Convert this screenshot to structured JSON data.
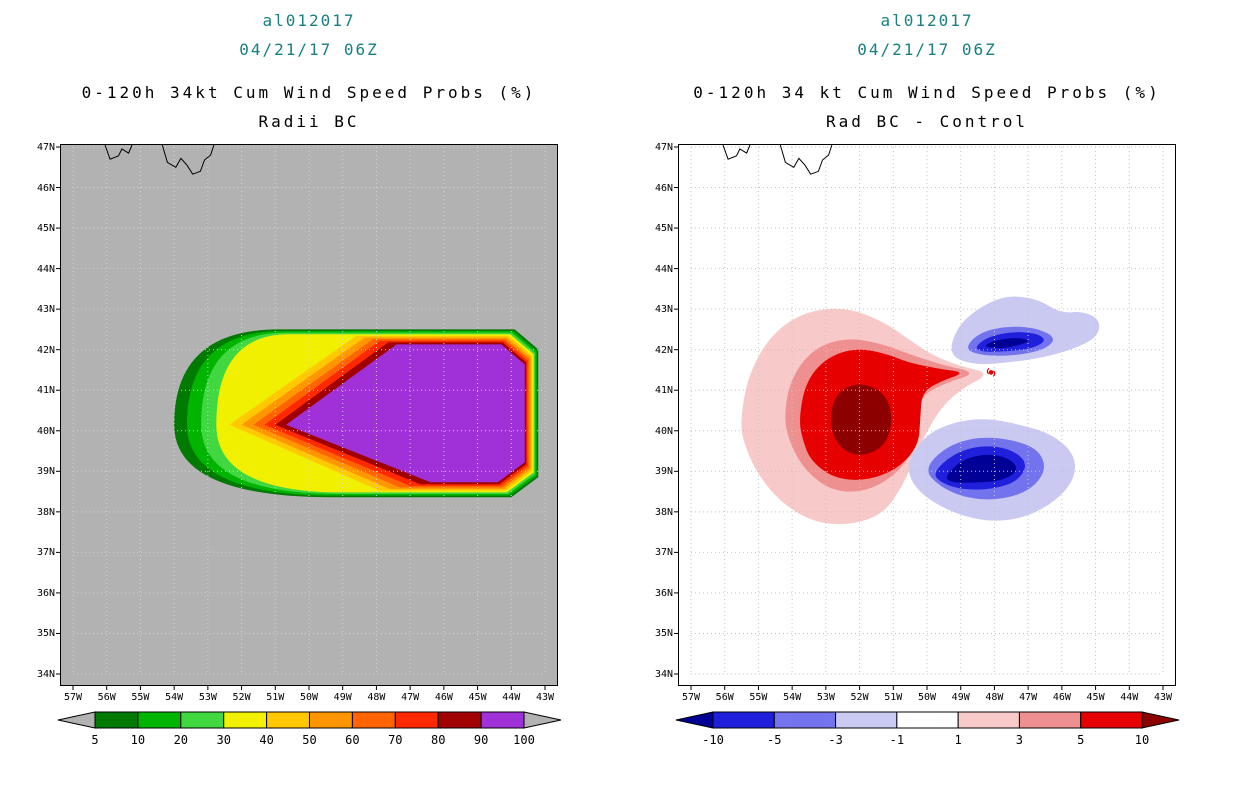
{
  "coastlines": [
    [
      [
        56.05,
        47.05
      ],
      [
        55.9,
        46.7
      ],
      [
        55.65,
        46.78
      ],
      [
        55.55,
        46.95
      ],
      [
        55.35,
        46.85
      ],
      [
        55.25,
        47.05
      ]
    ],
    [
      [
        54.35,
        47.05
      ],
      [
        54.2,
        46.62
      ],
      [
        53.95,
        46.5
      ],
      [
        53.8,
        46.72
      ],
      [
        53.62,
        46.55
      ],
      [
        53.45,
        46.33
      ],
      [
        53.22,
        46.4
      ],
      [
        53.1,
        46.68
      ],
      [
        52.92,
        46.8
      ],
      [
        52.82,
        47.05
      ]
    ]
  ],
  "chart_data": [
    {
      "type": "contour-map",
      "title_lines": [
        "al012017",
        "04/21/17 06Z"
      ],
      "title": "0-120h 34kt Cum Wind Speed Probs (%)",
      "subtitle": "Radii BC",
      "title_color": "#188080",
      "units": "%",
      "background": "#b2b2b2",
      "grid": true,
      "grid_color": "#d2d2d2",
      "x_axis": {
        "labels": [
          "57W",
          "56W",
          "55W",
          "54W",
          "53W",
          "52W",
          "51W",
          "50W",
          "49W",
          "48W",
          "47W",
          "46W",
          "45W",
          "44W",
          "43W"
        ]
      },
      "y_axis": {
        "labels": [
          "47N",
          "46N",
          "45N",
          "44N",
          "43N",
          "42N",
          "41N",
          "40N",
          "39N",
          "38N",
          "37N",
          "36N",
          "35N",
          "34N"
        ]
      },
      "levels": [
        {
          "threshold": 5,
          "color": "#007a00",
          "shape": "round",
          "west": 54.0,
          "north": 42.5,
          "south": 38.36,
          "east": 43.2,
          "tl": 50.9,
          "bl": 49.3
        },
        {
          "threshold": 10,
          "color": "#00b400",
          "shape": "round",
          "west": 53.62,
          "north": 42.46,
          "south": 38.4,
          "east": 43.245,
          "tl": 50.8,
          "bl": 49.2
        },
        {
          "threshold": 20,
          "color": "#41d741",
          "shape": "round",
          "west": 53.2,
          "north": 42.42,
          "south": 38.44,
          "east": 43.29,
          "tl": 50.7,
          "bl": 49.1
        },
        {
          "threshold": 30,
          "color": "#f0f000",
          "shape": "round",
          "west": 52.75,
          "north": 42.38,
          "south": 38.48,
          "east": 43.335,
          "tl": 50.6,
          "bl": 49.0
        },
        {
          "threshold": 40,
          "color": "#ffc800",
          "shape": "wedge",
          "west": 52.36,
          "north": 42.34,
          "south": 38.52,
          "east": 43.38,
          "tl": 48.6,
          "bl": 47.9
        },
        {
          "threshold": 50,
          "color": "#ff9600",
          "shape": "wedge",
          "west": 52.0,
          "north": 42.3,
          "south": 38.56,
          "east": 43.425,
          "tl": 48.35,
          "bl": 47.6
        },
        {
          "threshold": 60,
          "color": "#ff6400",
          "shape": "wedge",
          "west": 51.65,
          "north": 42.26,
          "south": 38.6,
          "east": 43.47,
          "tl": 48.1,
          "bl": 47.3
        },
        {
          "threshold": 70,
          "color": "#ff2800",
          "shape": "wedge",
          "west": 51.32,
          "north": 42.22,
          "south": 38.64,
          "east": 43.515,
          "tl": 47.9,
          "bl": 47.0
        },
        {
          "threshold": 80,
          "color": "#a00000",
          "shape": "wedge",
          "west": 51.0,
          "north": 42.18,
          "south": 38.68,
          "east": 43.557,
          "tl": 47.65,
          "bl": 46.7
        },
        {
          "threshold": 90,
          "color": "#a030d8",
          "shape": "wedge",
          "west": 50.68,
          "north": 42.13,
          "south": 38.73,
          "east": 43.6,
          "tl": 47.4,
          "bl": 46.4
        }
      ],
      "colorbar": {
        "labels": [
          "5",
          "10",
          "20",
          "30",
          "40",
          "50",
          "60",
          "70",
          "80",
          "90",
          "100"
        ],
        "segment_colors": [
          "#007a00",
          "#00b400",
          "#41d741",
          "#f0f000",
          "#ffc800",
          "#ff9600",
          "#ff6400",
          "#ff2800",
          "#a00000",
          "#a030d8"
        ],
        "left_arrow": "#b2b2b2",
        "right_arrow": "#b2b2b2"
      }
    },
    {
      "type": "contour-map-difference",
      "title_lines": [
        "al012017",
        "04/21/17 06Z"
      ],
      "title": "0-120h 34 kt Cum Wind Speed Probs (%)",
      "subtitle": "Rad BC - Control",
      "title_color": "#188080",
      "units": "%",
      "background": "#ffffff",
      "grid": true,
      "grid_color": "#c4c4c4",
      "x_axis": {
        "labels": [
          "57W",
          "56W",
          "55W",
          "54W",
          "53W",
          "52W",
          "51W",
          "50W",
          "49W",
          "48W",
          "47W",
          "46W",
          "45W",
          "44W",
          "43W"
        ]
      },
      "y_axis": {
        "labels": [
          "47N",
          "46N",
          "45N",
          "44N",
          "43N",
          "42N",
          "41N",
          "40N",
          "39N",
          "38N",
          "37N",
          "36N",
          "35N",
          "34N"
        ]
      },
      "blobs": [
        {
          "level": "1 to 3",
          "color": "#f7c9c9",
          "pts": [
            [
              55.55,
              40.2
            ],
            [
              55.3,
              41.4
            ],
            [
              54.6,
              42.4
            ],
            [
              53.6,
              42.95
            ],
            [
              52.4,
              43.05
            ],
            [
              51.3,
              42.7
            ],
            [
              50.45,
              42.2
            ],
            [
              49.8,
              41.85
            ],
            [
              49.05,
              41.6
            ],
            [
              48.1,
              41.42
            ],
            [
              48.95,
              41.05
            ],
            [
              49.55,
              40.6
            ],
            [
              50.0,
              40.0
            ],
            [
              50.35,
              39.35
            ],
            [
              50.75,
              38.6
            ],
            [
              51.3,
              37.95
            ],
            [
              52.2,
              37.68
            ],
            [
              53.3,
              37.72
            ],
            [
              54.3,
              38.2
            ],
            [
              55.0,
              38.9
            ],
            [
              55.4,
              39.6
            ]
          ]
        },
        {
          "level": "3 to 5",
          "color": "#ef9090",
          "pts": [
            [
              54.25,
              40.3
            ],
            [
              54.05,
              41.3
            ],
            [
              53.35,
              42.05
            ],
            [
              52.35,
              42.3
            ],
            [
              51.35,
              42.15
            ],
            [
              50.55,
              41.9
            ],
            [
              49.55,
              41.62
            ],
            [
              48.5,
              41.43
            ],
            [
              49.45,
              41.18
            ],
            [
              50.2,
              40.85
            ],
            [
              50.3,
              40.2
            ],
            [
              50.4,
              39.5
            ],
            [
              50.95,
              38.9
            ],
            [
              51.8,
              38.5
            ],
            [
              52.8,
              38.5
            ],
            [
              53.6,
              39.0
            ],
            [
              54.05,
              39.65
            ]
          ]
        },
        {
          "level": "5 to 10",
          "color": "#e60000",
          "pts": [
            [
              53.8,
              40.3
            ],
            [
              53.6,
              41.2
            ],
            [
              53.0,
              41.8
            ],
            [
              52.1,
              42.05
            ],
            [
              51.2,
              41.9
            ],
            [
              50.55,
              41.68
            ],
            [
              49.6,
              41.52
            ],
            [
              48.85,
              41.44
            ],
            [
              49.6,
              41.22
            ],
            [
              50.15,
              40.95
            ],
            [
              50.2,
              40.3
            ],
            [
              50.25,
              39.65
            ],
            [
              50.8,
              39.1
            ],
            [
              51.7,
              38.78
            ],
            [
              52.7,
              38.8
            ],
            [
              53.45,
              39.25
            ],
            [
              53.7,
              39.8
            ]
          ]
        },
        {
          "level": "> 10",
          "color": "#8c0000",
          "pts": [
            [
              52.9,
              40.25
            ],
            [
              52.7,
              40.95
            ],
            [
              52.0,
              41.2
            ],
            [
              51.25,
              40.95
            ],
            [
              51.0,
              40.3
            ],
            [
              51.25,
              39.6
            ],
            [
              52.0,
              39.35
            ],
            [
              52.65,
              39.6
            ]
          ]
        },
        {
          "level": "-3 to -1",
          "color": "#c9c9f2",
          "pts": [
            [
              50.6,
              39.2
            ],
            [
              50.1,
              39.85
            ],
            [
              49.3,
              40.2
            ],
            [
              48.3,
              40.32
            ],
            [
              47.2,
              40.15
            ],
            [
              46.25,
              39.9
            ],
            [
              45.6,
              39.4
            ],
            [
              45.62,
              38.8
            ],
            [
              46.2,
              38.25
            ],
            [
              47.1,
              37.85
            ],
            [
              48.15,
              37.75
            ],
            [
              49.15,
              37.95
            ],
            [
              49.95,
              38.3
            ],
            [
              50.45,
              38.7
            ]
          ]
        },
        {
          "level": "-5 to -3",
          "color": "#7373ee",
          "pts": [
            [
              50.1,
              39.05
            ],
            [
              49.45,
              39.6
            ],
            [
              48.55,
              39.85
            ],
            [
              47.55,
              39.8
            ],
            [
              46.7,
              39.55
            ],
            [
              46.45,
              39.05
            ],
            [
              46.9,
              38.55
            ],
            [
              47.75,
              38.3
            ],
            [
              48.75,
              38.32
            ],
            [
              49.6,
              38.6
            ]
          ]
        },
        {
          "level": "-10 to -5",
          "color": "#2020dc",
          "pts": [
            [
              49.85,
              38.95
            ],
            [
              49.2,
              39.45
            ],
            [
              48.35,
              39.65
            ],
            [
              47.5,
              39.55
            ],
            [
              47.0,
              39.2
            ],
            [
              47.3,
              38.75
            ],
            [
              48.1,
              38.55
            ],
            [
              48.95,
              38.55
            ],
            [
              49.55,
              38.7
            ]
          ]
        },
        {
          "level": "< -10",
          "color": "#000096",
          "pts": [
            [
              49.5,
              38.85
            ],
            [
              48.95,
              39.3
            ],
            [
              48.15,
              39.45
            ],
            [
              47.45,
              39.28
            ],
            [
              47.3,
              38.98
            ],
            [
              47.85,
              38.75
            ],
            [
              48.7,
              38.72
            ],
            [
              49.25,
              38.72
            ]
          ]
        },
        {
          "level": "-3 to -1",
          "color": "#c9c9f2",
          "pts": [
            [
              49.35,
              41.85
            ],
            [
              49.15,
              42.5
            ],
            [
              48.55,
              43.0
            ],
            [
              47.65,
              43.35
            ],
            [
              46.7,
              43.25
            ],
            [
              46.05,
              42.9
            ],
            [
              45.35,
              42.95
            ],
            [
              44.85,
              42.72
            ],
            [
              44.95,
              42.3
            ],
            [
              45.7,
              42.0
            ],
            [
              46.6,
              41.8
            ],
            [
              47.6,
              41.68
            ],
            [
              48.6,
              41.62
            ]
          ]
        },
        {
          "level": "-5 to -3",
          "color": "#7373ee",
          "pts": [
            [
              48.9,
              42.0
            ],
            [
              48.5,
              42.4
            ],
            [
              47.7,
              42.58
            ],
            [
              46.8,
              42.55
            ],
            [
              46.15,
              42.3
            ],
            [
              46.5,
              42.0
            ],
            [
              47.4,
              41.85
            ],
            [
              48.3,
              41.85
            ]
          ]
        },
        {
          "level": "-10 to -5",
          "color": "#2020dc",
          "pts": [
            [
              48.6,
              42.05
            ],
            [
              48.2,
              42.32
            ],
            [
              47.45,
              42.45
            ],
            [
              46.7,
              42.4
            ],
            [
              46.45,
              42.2
            ],
            [
              47.0,
              42.0
            ],
            [
              47.9,
              41.95
            ],
            [
              48.35,
              41.95
            ]
          ]
        },
        {
          "level": "< -10",
          "color": "#000096",
          "pts": [
            [
              48.35,
              42.1
            ],
            [
              47.9,
              42.25
            ],
            [
              47.3,
              42.3
            ],
            [
              46.9,
              42.22
            ],
            [
              47.4,
              42.08
            ],
            [
              47.95,
              42.02
            ]
          ]
        }
      ],
      "storm_marker": {
        "lon": 48.1,
        "lat": 41.44,
        "color": "#e60000"
      },
      "colorbar": {
        "labels": [
          "-10",
          "-5",
          "-3",
          "-1",
          "1",
          "3",
          "5",
          "10"
        ],
        "segment_colors": [
          "#2020dc",
          "#7373ee",
          "#c9c9f2",
          "#ffffff",
          "#f7c9c9",
          "#ef9090",
          "#e60000"
        ],
        "left_arrow": "#000096",
        "right_arrow": "#8c0000"
      }
    }
  ]
}
